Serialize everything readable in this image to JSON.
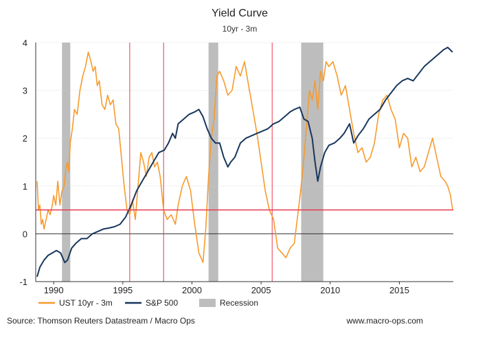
{
  "chart_data": {
    "type": "line",
    "title": "Yield Curve",
    "subtitle": "10yr - 3m",
    "xlim": [
      1988.7,
      2018.9
    ],
    "ylim": [
      -1,
      4
    ],
    "x_ticks": [
      1990,
      1995,
      2000,
      2005,
      2010,
      2015
    ],
    "y_ticks": [
      -1,
      0,
      1,
      2,
      3,
      4
    ],
    "grid": "horizontal",
    "recessions": [
      [
        1990.6,
        1991.2
      ],
      [
        2001.2,
        2001.9
      ],
      [
        2007.9,
        2009.5
      ]
    ],
    "vertical_markers": [
      1995.5,
      1997.95,
      2005.8
    ],
    "threshold": {
      "value": 0.5,
      "color": "#e8384f"
    },
    "series": [
      {
        "name": "UST 10yr - 3m",
        "color": "#f79a2b",
        "x": [
          1988.8,
          1988.9,
          1989.0,
          1989.1,
          1989.2,
          1989.3,
          1989.45,
          1989.6,
          1989.75,
          1989.9,
          1990.0,
          1990.15,
          1990.3,
          1990.45,
          1990.6,
          1990.75,
          1990.9,
          1991.0,
          1991.1,
          1991.2,
          1991.35,
          1991.5,
          1991.7,
          1991.9,
          1992.1,
          1992.3,
          1992.5,
          1992.7,
          1992.85,
          1993.0,
          1993.15,
          1993.3,
          1993.5,
          1993.7,
          1993.9,
          1994.1,
          1994.3,
          1994.5,
          1994.7,
          1994.9,
          1995.1,
          1995.3,
          1995.5,
          1995.7,
          1995.9,
          1996.1,
          1996.3,
          1996.5,
          1996.7,
          1996.9,
          1997.1,
          1997.3,
          1997.5,
          1997.7,
          1997.95,
          1998.2,
          1998.5,
          1998.8,
          1999.0,
          1999.3,
          1999.6,
          1999.9,
          2000.2,
          2000.5,
          2000.8,
          2001.0,
          2001.2,
          2001.4,
          2001.6,
          2001.8,
          2002.0,
          2002.3,
          2002.6,
          2002.9,
          2003.2,
          2003.5,
          2003.8,
          2004.1,
          2004.4,
          2004.7,
          2005.0,
          2005.3,
          2005.6,
          2005.9,
          2006.2,
          2006.5,
          2006.8,
          2007.1,
          2007.4,
          2007.7,
          2007.9,
          2008.1,
          2008.3,
          2008.5,
          2008.7,
          2008.9,
          2009.1,
          2009.3,
          2009.5,
          2009.7,
          2009.9,
          2010.2,
          2010.5,
          2010.8,
          2011.1,
          2011.4,
          2011.7,
          2012.0,
          2012.3,
          2012.6,
          2012.9,
          2013.2,
          2013.5,
          2013.8,
          2014.1,
          2014.4,
          2014.7,
          2015.0,
          2015.3,
          2015.6,
          2015.9,
          2016.2,
          2016.5,
          2016.8,
          2017.1,
          2017.4,
          2017.7,
          2018.0,
          2018.3,
          2018.5,
          2018.7,
          2018.85
        ],
        "values": [
          1.1,
          0.5,
          0.6,
          0.2,
          0.3,
          0.1,
          0.3,
          0.5,
          0.4,
          0.6,
          0.8,
          0.6,
          1.1,
          0.6,
          0.9,
          1.0,
          1.4,
          1.5,
          1.3,
          1.9,
          2.2,
          2.6,
          2.5,
          3.0,
          3.3,
          3.5,
          3.8,
          3.6,
          3.4,
          3.5,
          3.1,
          3.2,
          2.7,
          2.6,
          2.9,
          2.7,
          2.8,
          2.3,
          2.2,
          1.6,
          1.0,
          0.5,
          0.4,
          0.7,
          0.3,
          1.0,
          1.7,
          1.5,
          1.2,
          1.6,
          1.7,
          1.4,
          1.5,
          1.2,
          0.5,
          0.3,
          0.4,
          0.2,
          0.6,
          1.0,
          1.2,
          0.9,
          0.2,
          -0.4,
          -0.6,
          0.1,
          1.2,
          2.0,
          2.4,
          3.3,
          3.4,
          3.2,
          2.9,
          3.0,
          3.5,
          3.3,
          3.6,
          3.1,
          2.6,
          2.1,
          1.5,
          0.9,
          0.5,
          0.3,
          -0.3,
          -0.4,
          -0.5,
          -0.3,
          -0.2,
          0.5,
          1.0,
          1.6,
          2.3,
          3.0,
          2.8,
          3.2,
          2.6,
          3.4,
          3.2,
          3.6,
          3.5,
          3.6,
          3.3,
          2.9,
          3.1,
          2.6,
          2.1,
          1.7,
          1.8,
          1.5,
          1.6,
          1.9,
          2.5,
          2.8,
          2.9,
          2.6,
          2.4,
          1.8,
          2.1,
          2.0,
          1.4,
          1.6,
          1.3,
          1.4,
          1.7,
          2.0,
          1.6,
          1.2,
          1.1,
          1.0,
          0.8,
          0.5
        ],
        "series_line": true
      },
      {
        "name": "S&P 500",
        "color": "#17365d",
        "x": [
          1988.8,
          1989.0,
          1989.3,
          1989.6,
          1989.9,
          1990.2,
          1990.5,
          1990.8,
          1991.0,
          1991.3,
          1991.6,
          1992.0,
          1992.4,
          1992.8,
          1993.2,
          1993.6,
          1994.0,
          1994.4,
          1994.8,
          1995.2,
          1995.6,
          1996.0,
          1996.4,
          1996.8,
          1997.2,
          1997.6,
          1998.0,
          1998.3,
          1998.6,
          1998.8,
          1999.0,
          1999.4,
          1999.8,
          2000.2,
          2000.5,
          2000.8,
          2001.1,
          2001.4,
          2001.7,
          2002.0,
          2002.3,
          2002.6,
          2002.8,
          2003.1,
          2003.5,
          2003.9,
          2004.3,
          2004.7,
          2005.1,
          2005.5,
          2005.9,
          2006.3,
          2006.7,
          2007.1,
          2007.4,
          2007.8,
          2008.1,
          2008.4,
          2008.7,
          2008.9,
          2009.1,
          2009.3,
          2009.6,
          2009.9,
          2010.3,
          2010.7,
          2011.0,
          2011.4,
          2011.7,
          2012.0,
          2012.4,
          2012.8,
          2013.2,
          2013.6,
          2014.0,
          2014.4,
          2014.8,
          2015.2,
          2015.6,
          2016.0,
          2016.4,
          2016.8,
          2017.2,
          2017.6,
          2018.0,
          2018.2,
          2018.5,
          2018.85
        ],
        "values": [
          -0.9,
          -0.7,
          -0.55,
          -0.45,
          -0.4,
          -0.35,
          -0.4,
          -0.6,
          -0.55,
          -0.3,
          -0.2,
          -0.1,
          -0.1,
          0.0,
          0.05,
          0.1,
          0.12,
          0.15,
          0.2,
          0.35,
          0.6,
          0.9,
          1.1,
          1.3,
          1.5,
          1.7,
          1.75,
          1.9,
          2.1,
          2.0,
          2.3,
          2.4,
          2.5,
          2.55,
          2.6,
          2.45,
          2.2,
          2.0,
          1.9,
          1.9,
          1.6,
          1.4,
          1.5,
          1.6,
          1.9,
          2.0,
          2.05,
          2.1,
          2.15,
          2.2,
          2.3,
          2.35,
          2.45,
          2.55,
          2.6,
          2.65,
          2.4,
          2.35,
          2.0,
          1.5,
          1.1,
          1.4,
          1.7,
          1.85,
          1.9,
          2.0,
          2.1,
          2.3,
          1.9,
          2.05,
          2.2,
          2.4,
          2.5,
          2.6,
          2.8,
          2.95,
          3.1,
          3.2,
          3.25,
          3.2,
          3.35,
          3.5,
          3.6,
          3.7,
          3.8,
          3.85,
          3.9,
          3.8
        ]
      }
    ],
    "legend": {
      "placement": "bottom",
      "entries": [
        "UST 10yr - 3m",
        "S&P 500",
        "Recession"
      ]
    }
  },
  "footer": {
    "source": "Source: Thomson Reuters Datastream / Macro Ops",
    "website": "www.macro-ops.com"
  },
  "colors": {
    "recession_fill": "#bdbdbd",
    "marker_line": "#e8384f",
    "axis": "#333333",
    "grid": "#cccccc"
  }
}
